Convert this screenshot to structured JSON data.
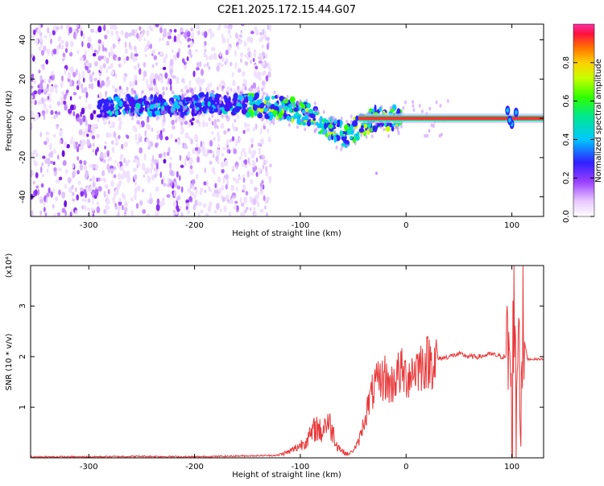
{
  "title": "C2E1.2025.172.15.44.G07",
  "colorbar": {
    "label": "Normalized spectral amplitude",
    "ticks": [
      "0.0",
      "0.2",
      "0.4",
      "0.6",
      "0.8"
    ],
    "tick_values": [
      0.0,
      0.2,
      0.4,
      0.6,
      0.8
    ]
  },
  "chart_data": [
    {
      "type": "heatmap",
      "xlabel": "Height of straight line (km)",
      "ylabel": "Frequency (Hz)",
      "xlim": [
        -355,
        130
      ],
      "ylim": [
        -50,
        48
      ],
      "xticks": [
        -300,
        -200,
        -100,
        0,
        100
      ],
      "xtick_labels": [
        "-300",
        "-200",
        "-100",
        "0",
        "100"
      ],
      "yticks": [
        -40,
        -20,
        0,
        20,
        40
      ],
      "ytick_labels": [
        "-40",
        "-20",
        "0",
        "20",
        "40"
      ],
      "trace": {
        "x": [
          -285,
          -270,
          -250,
          -230,
          -210,
          -190,
          -170,
          -150,
          -130,
          -110,
          -90,
          -75,
          -65,
          -55,
          -48,
          -40,
          -30,
          -20,
          -10,
          0,
          20,
          60,
          95,
          100,
          105,
          130
        ],
        "y": [
          5,
          7,
          6,
          7,
          6,
          8,
          7,
          7,
          6,
          5,
          1,
          -4,
          -7,
          -9,
          -6,
          -3,
          0,
          0,
          0,
          0,
          0,
          0,
          0,
          0,
          0,
          0
        ]
      }
    },
    {
      "type": "line",
      "xlabel": "Height of straight line (km)",
      "ylabel": "SNR (10 * v/v)",
      "y_multiplier": "(x10⁴)",
      "xlim": [
        -355,
        130
      ],
      "ylim": [
        0,
        3.8
      ],
      "xticks": [
        -300,
        -200,
        -100,
        0,
        100
      ],
      "xtick_labels": [
        "-300",
        "-200",
        "-100",
        "0",
        "100"
      ],
      "yticks": [
        1,
        2,
        3
      ],
      "ytick_labels": [
        "1",
        "2",
        "3"
      ],
      "series": [
        {
          "color": "#e8383a",
          "x": [
            -355,
            -300,
            -250,
            -200,
            -150,
            -120,
            -110,
            -100,
            -90,
            -85,
            -80,
            -75,
            -70,
            -65,
            -60,
            -55,
            -50,
            -45,
            -40,
            -35,
            -30,
            -25,
            -20,
            -15,
            -10,
            -5,
            0,
            10,
            20,
            30,
            40,
            50,
            60,
            70,
            80,
            90,
            95,
            98,
            100,
            102,
            104,
            106,
            108,
            110,
            115,
            120,
            130
          ],
          "y": [
            0.02,
            0.02,
            0.03,
            0.02,
            0.04,
            0.05,
            0.1,
            0.2,
            0.35,
            0.5,
            0.4,
            0.6,
            0.45,
            0.2,
            0.1,
            0.06,
            0.15,
            0.3,
            0.7,
            1.1,
            1.4,
            1.5,
            1.6,
            1.4,
            1.6,
            1.7,
            1.6,
            1.8,
            1.9,
            1.95,
            2.0,
            2.05,
            2.0,
            2.0,
            2.05,
            2.0,
            2.0,
            2.2,
            0.2,
            3.8,
            0.5,
            3.3,
            1.0,
            2.5,
            1.95,
            1.95,
            1.95
          ]
        }
      ]
    }
  ]
}
